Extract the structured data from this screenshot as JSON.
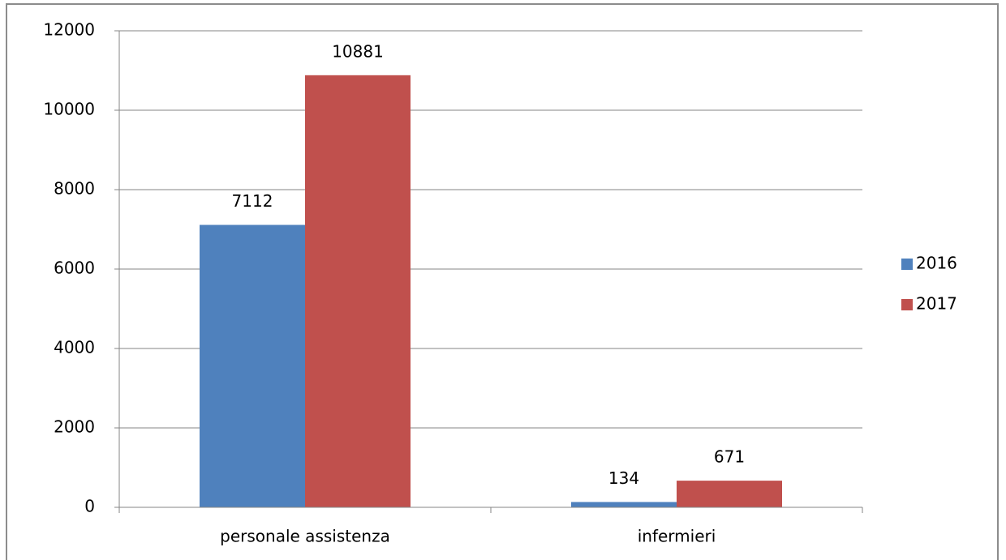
{
  "chart_data": {
    "type": "bar",
    "categories": [
      "personale assistenza",
      "infermieri"
    ],
    "series": [
      {
        "name": "2016",
        "color": "#4f81bd",
        "values": [
          7112,
          134
        ]
      },
      {
        "name": "2017",
        "color": "#c0504d",
        "values": [
          10881,
          671
        ]
      }
    ],
    "ylim": [
      0,
      12000
    ],
    "yticks": [
      0,
      2000,
      4000,
      6000,
      8000,
      10000,
      12000
    ],
    "grid": true,
    "legend": "right"
  }
}
